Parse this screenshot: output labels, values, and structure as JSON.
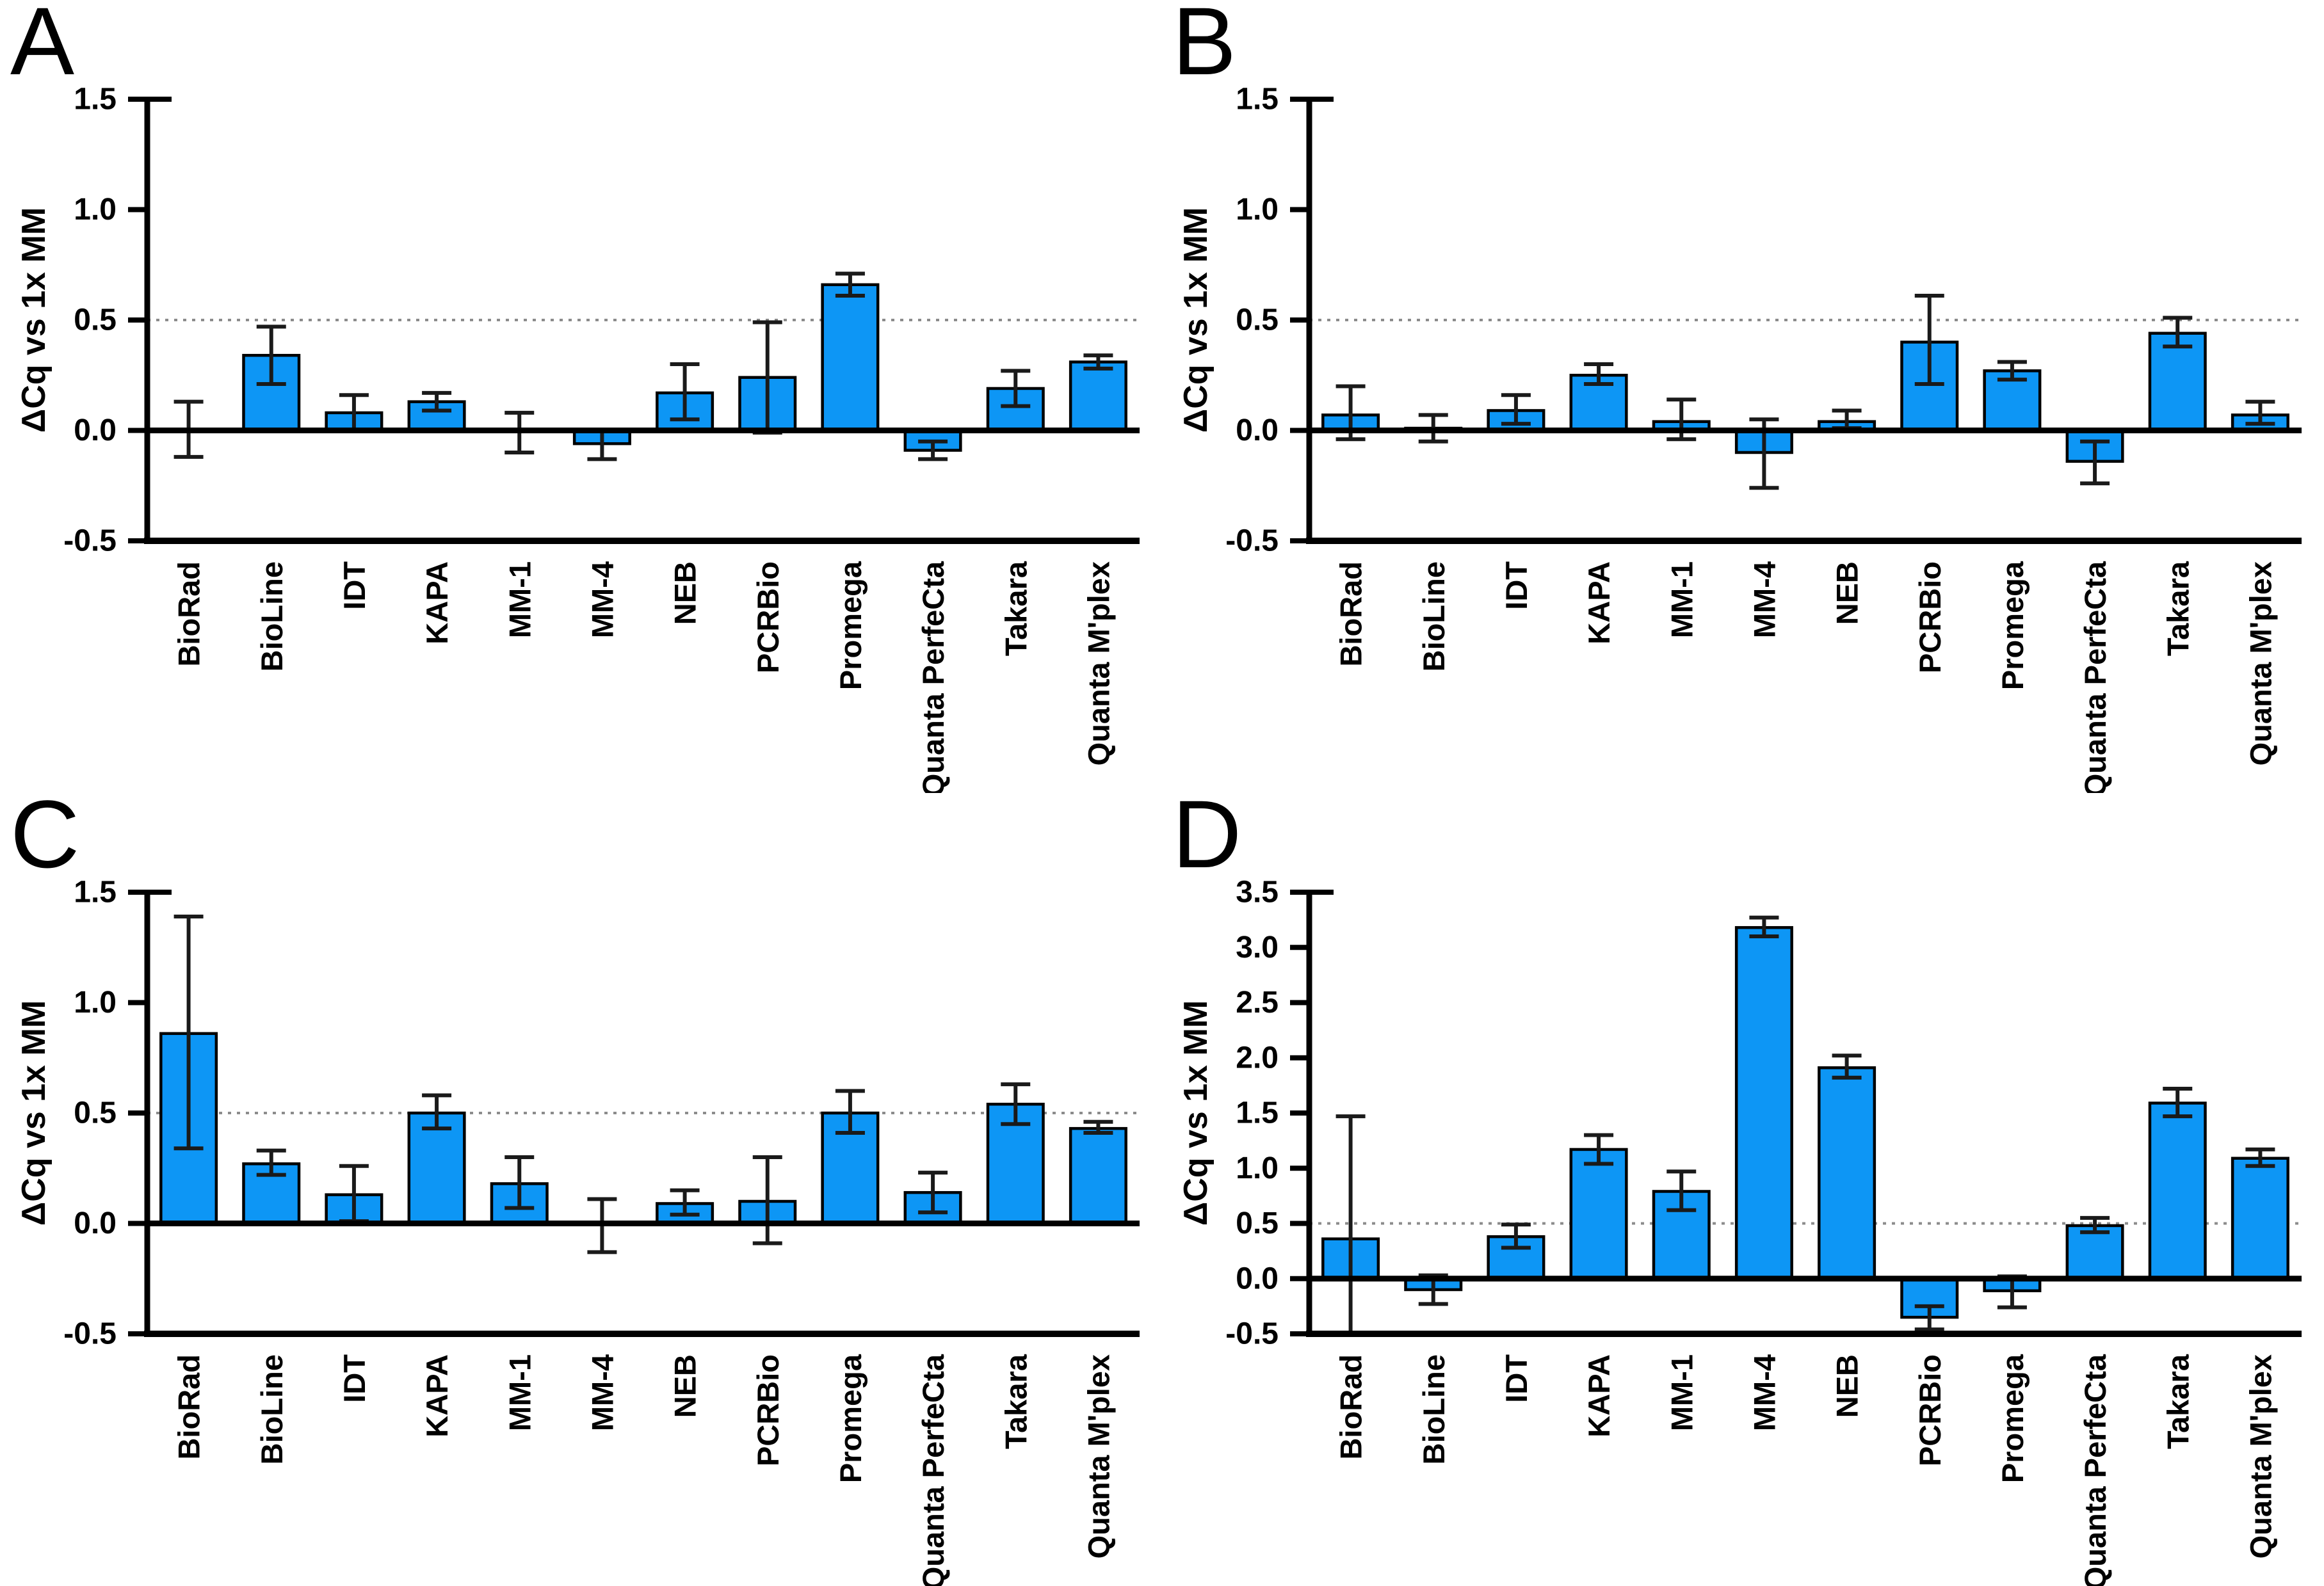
{
  "figure": {
    "background": "#ffffff",
    "ylabel": "ΔCq vs 1x MM"
  },
  "colors": {
    "bar_fill": "#0d96f5",
    "bar_stroke": "#000000",
    "axis": "#000000",
    "error": "#1a1a1a",
    "ref_line": "#8c8c8c",
    "text": "#000000"
  },
  "chart_data": [
    {
      "panel": "A",
      "type": "bar",
      "ylabel": "ΔCq vs 1x MM",
      "ylim": [
        -0.5,
        1.5
      ],
      "yticks": [
        -0.5,
        0.0,
        0.5,
        1.0,
        1.5
      ],
      "ref_line": 0.5,
      "grid": false,
      "categories": [
        "BioRad",
        "BioLine",
        "IDT",
        "KAPA",
        "MM-1",
        "MM-4",
        "NEB",
        "PCRBio",
        "Promega",
        "Quanta PerfeCta",
        "Takara",
        "Quanta M'plex"
      ],
      "values": [
        0.0,
        0.34,
        0.08,
        0.13,
        0.0,
        -0.06,
        0.17,
        0.24,
        0.66,
        -0.09,
        0.19,
        0.31
      ],
      "error_low": [
        -0.12,
        0.21,
        0.0,
        0.09,
        -0.1,
        -0.13,
        0.05,
        -0.01,
        0.61,
        -0.13,
        0.11,
        0.28
      ],
      "error_high": [
        0.13,
        0.47,
        0.16,
        0.17,
        0.08,
        0.0,
        0.3,
        0.49,
        0.71,
        -0.05,
        0.27,
        0.34
      ]
    },
    {
      "panel": "B",
      "type": "bar",
      "ylabel": "ΔCq vs 1x MM",
      "ylim": [
        -0.5,
        1.5
      ],
      "yticks": [
        -0.5,
        0.0,
        0.5,
        1.0,
        1.5
      ],
      "ref_line": 0.5,
      "grid": false,
      "categories": [
        "BioRad",
        "BioLine",
        "IDT",
        "KAPA",
        "MM-1",
        "MM-4",
        "NEB",
        "PCRBio",
        "Promega",
        "Quanta PerfeCta",
        "Takara",
        "Quanta M'plex"
      ],
      "values": [
        0.07,
        0.01,
        0.09,
        0.25,
        0.04,
        -0.1,
        0.04,
        0.4,
        0.27,
        -0.14,
        0.44,
        0.07
      ],
      "error_low": [
        -0.04,
        -0.05,
        0.03,
        0.21,
        -0.04,
        -0.26,
        0.01,
        0.21,
        0.23,
        -0.24,
        0.38,
        0.03
      ],
      "error_high": [
        0.2,
        0.07,
        0.16,
        0.3,
        0.14,
        0.05,
        0.09,
        0.61,
        0.31,
        -0.05,
        0.51,
        0.13
      ]
    },
    {
      "panel": "C",
      "type": "bar",
      "ylabel": "ΔCq vs 1x MM",
      "ylim": [
        -0.5,
        1.5
      ],
      "yticks": [
        -0.5,
        0.0,
        0.5,
        1.0,
        1.5
      ],
      "ref_line": 0.5,
      "grid": false,
      "categories": [
        "BioRad",
        "BioLine",
        "IDT",
        "KAPA",
        "MM-1",
        "MM-4",
        "NEB",
        "PCRBio",
        "Promega",
        "Quanta PerfeCta",
        "Takara",
        "Quanta M'plex"
      ],
      "values": [
        0.86,
        0.27,
        0.13,
        0.5,
        0.18,
        0.0,
        0.09,
        0.1,
        0.5,
        0.14,
        0.54,
        0.43
      ],
      "error_low": [
        0.34,
        0.22,
        0.01,
        0.43,
        0.07,
        -0.13,
        0.04,
        -0.09,
        0.41,
        0.05,
        0.45,
        0.41
      ],
      "error_high": [
        1.39,
        0.33,
        0.26,
        0.58,
        0.3,
        0.11,
        0.15,
        0.3,
        0.6,
        0.23,
        0.63,
        0.46
      ]
    },
    {
      "panel": "D",
      "type": "bar",
      "ylabel": "ΔCq vs 1x MM",
      "ylim": [
        -0.5,
        3.5
      ],
      "yticks": [
        -0.5,
        0.0,
        0.5,
        1.0,
        1.5,
        2.0,
        2.5,
        3.0,
        3.5
      ],
      "ref_line": 0.5,
      "grid": false,
      "categories": [
        "BioRad",
        "BioLine",
        "IDT",
        "KAPA",
        "MM-1",
        "MM-4",
        "NEB",
        "PCRBio",
        "Promega",
        "Quanta PerfeCta",
        "Takara",
        "Quanta M'plex"
      ],
      "values": [
        0.36,
        -0.1,
        0.38,
        1.17,
        0.79,
        3.18,
        1.91,
        -0.35,
        -0.11,
        0.48,
        1.59,
        1.09
      ],
      "error_low": [
        -0.5,
        -0.23,
        0.28,
        1.04,
        0.62,
        3.1,
        1.82,
        -0.46,
        -0.26,
        0.42,
        1.47,
        1.02
      ],
      "error_high": [
        1.47,
        0.03,
        0.49,
        1.3,
        0.97,
        3.27,
        2.02,
        -0.25,
        0.02,
        0.55,
        1.72,
        1.17
      ]
    }
  ]
}
